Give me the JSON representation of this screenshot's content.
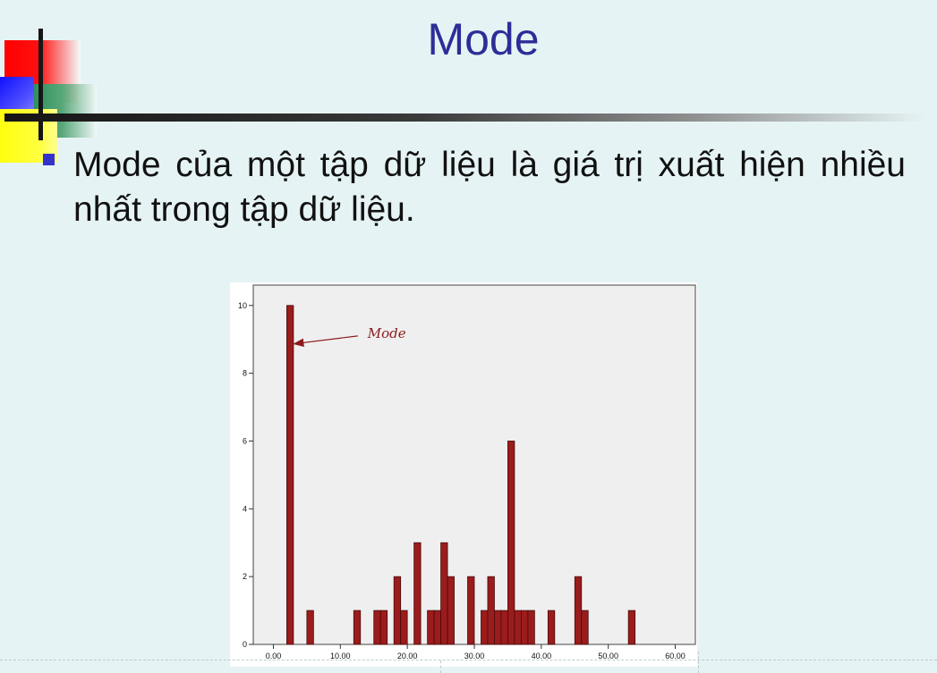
{
  "slide": {
    "title": "Mode",
    "bullet_text": "Mode của một tập dữ liệu là giá trị xuất hiện nhiều nhất trong tập dữ liệu."
  },
  "colors": {
    "title": "#2d2d98",
    "bullet": "#3333cc",
    "bar_fill": "#9b1c1c",
    "bar_stroke": "#4a0a0a",
    "plot_bg": "#efefef",
    "annotation": "#8b1a1a"
  },
  "chart_data": {
    "type": "bar",
    "annotation": {
      "text": "Mode",
      "points_to_x": 2.5,
      "points_to_y": 9
    },
    "xlim": [
      -3,
      63
    ],
    "ylim": [
      0,
      10.6
    ],
    "x_ticks": [
      {
        "value": 0,
        "label": "0.00"
      },
      {
        "value": 10,
        "label": "10.00"
      },
      {
        "value": 20,
        "label": "20.00"
      },
      {
        "value": 30,
        "label": "30.00"
      },
      {
        "value": 40,
        "label": "40.00"
      },
      {
        "value": 50,
        "label": "50.00"
      },
      {
        "value": 60,
        "label": "60.00"
      }
    ],
    "y_ticks": [
      {
        "value": 0,
        "label": "0"
      },
      {
        "value": 2,
        "label": "2"
      },
      {
        "value": 4,
        "label": "4"
      },
      {
        "value": 6,
        "label": "6"
      },
      {
        "value": 8,
        "label": "8"
      },
      {
        "value": 10,
        "label": "10"
      }
    ],
    "bin_width": 1,
    "bars": [
      {
        "x": 2,
        "count": 10
      },
      {
        "x": 5,
        "count": 1
      },
      {
        "x": 12,
        "count": 1
      },
      {
        "x": 15,
        "count": 1
      },
      {
        "x": 16,
        "count": 1
      },
      {
        "x": 18,
        "count": 2
      },
      {
        "x": 19,
        "count": 1
      },
      {
        "x": 21,
        "count": 3
      },
      {
        "x": 23,
        "count": 1
      },
      {
        "x": 24,
        "count": 1
      },
      {
        "x": 25,
        "count": 3
      },
      {
        "x": 26,
        "count": 2
      },
      {
        "x": 29,
        "count": 2
      },
      {
        "x": 31,
        "count": 1
      },
      {
        "x": 32,
        "count": 2
      },
      {
        "x": 33,
        "count": 1
      },
      {
        "x": 34,
        "count": 1
      },
      {
        "x": 35,
        "count": 6
      },
      {
        "x": 36,
        "count": 1
      },
      {
        "x": 37,
        "count": 1
      },
      {
        "x": 38,
        "count": 1
      },
      {
        "x": 41,
        "count": 1
      },
      {
        "x": 45,
        "count": 2
      },
      {
        "x": 46,
        "count": 1
      },
      {
        "x": 53,
        "count": 1
      }
    ]
  }
}
